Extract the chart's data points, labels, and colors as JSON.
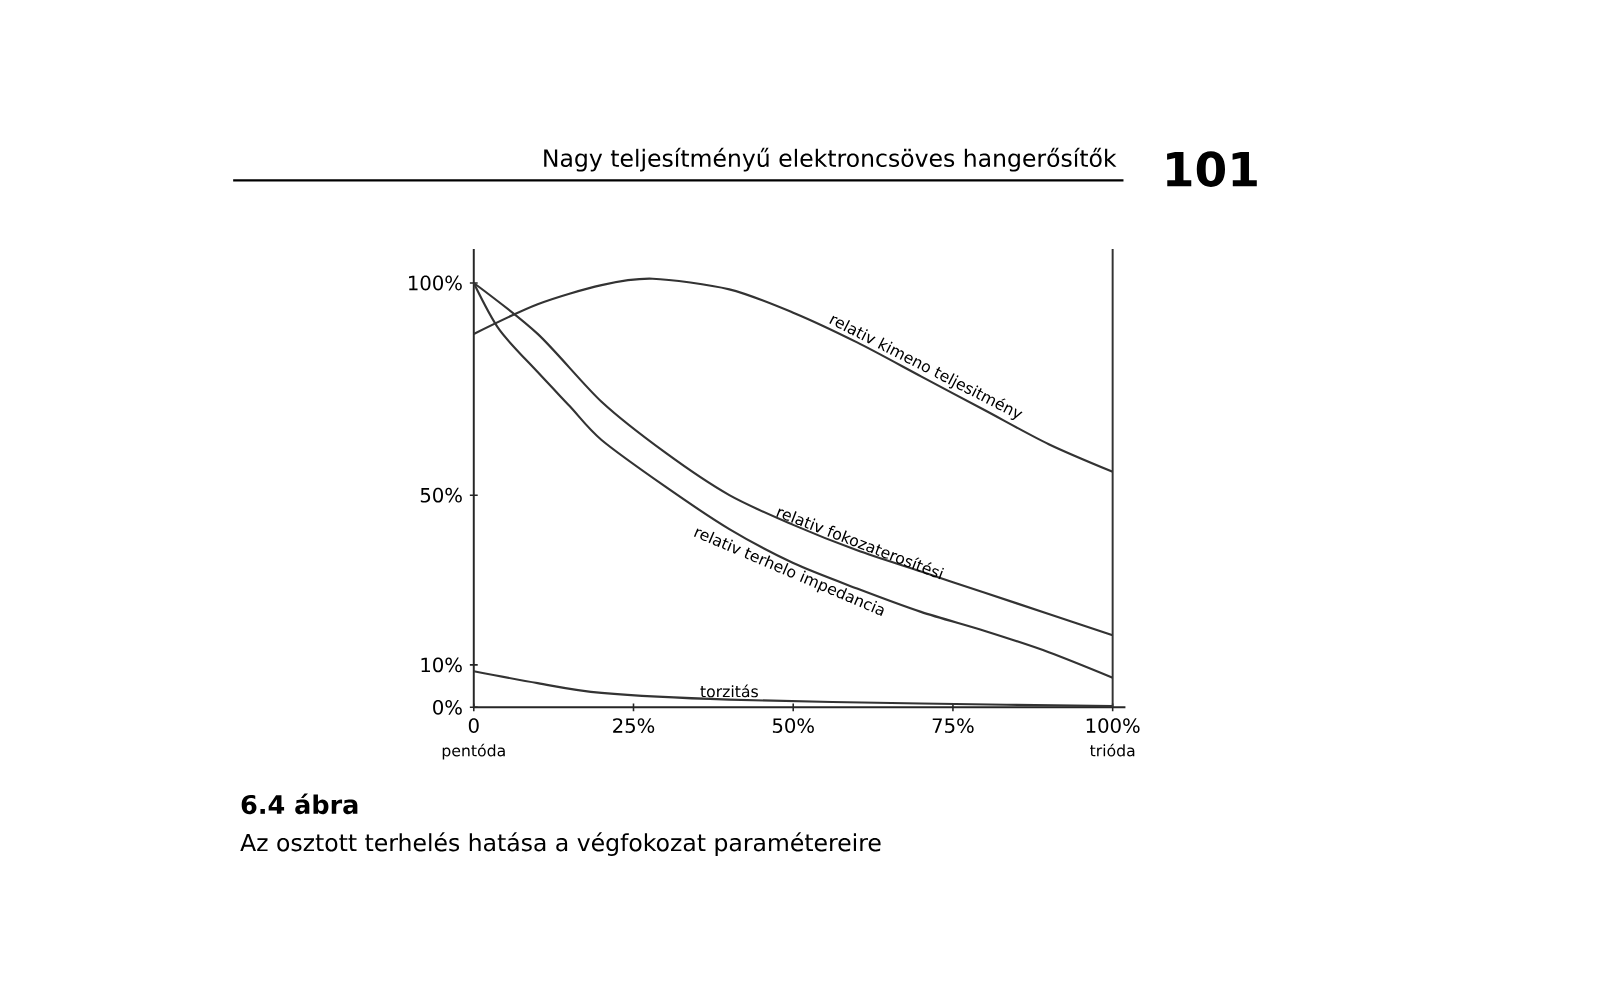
{
  "chart_data": {
    "type": "line",
    "title": "6.4 ábra",
    "subtitle": "Az osztott terhelés hatása a végfokozat paramétereire",
    "xlim": [
      0,
      102
    ],
    "ylim": [
      0,
      108
    ],
    "xticks": [
      {
        "value": 0,
        "label": "0"
      },
      {
        "value": 25,
        "label": "25%"
      },
      {
        "value": 50,
        "label": "50%"
      },
      {
        "value": 75,
        "label": "75%"
      },
      {
        "value": 100,
        "label": "100%"
      }
    ],
    "yticks": [
      {
        "value": 0,
        "label": "0%"
      },
      {
        "value": 10,
        "label": "10%"
      },
      {
        "value": 50,
        "label": "50%"
      },
      {
        "value": 100,
        "label": "100%"
      }
    ],
    "grid": false,
    "legend": false,
    "marker": "none",
    "line_style": "solid",
    "ref_lines": [
      {
        "axis": "x",
        "value": 100,
        "color": "#333333"
      }
    ],
    "annotations": [
      "Nagy teljesítményű elektroncsöves hangerősítők",
      "101",
      {
        "text": "pentóda",
        "x": 0,
        "y": 0
      },
      {
        "text": "trióda",
        "x": 100,
        "y": 0
      }
    ],
    "series": [
      {
        "name": "relativ kimeno teljesitmény",
        "color": "#333333",
        "x": [
          0,
          10,
          20,
          28,
          40,
          50,
          60,
          70,
          80,
          90,
          100
        ],
        "values": [
          88,
          95,
          99.5,
          101,
          98.5,
          93,
          86,
          78,
          70,
          62,
          55.5
        ]
      },
      {
        "name": "relativ fokozaterosítési",
        "color": "#333333",
        "x": [
          0,
          10,
          20,
          30,
          40,
          50,
          60,
          70,
          80,
          90,
          100
        ],
        "values": [
          100,
          88,
          72,
          60,
          50,
          43,
          37,
          32,
          27,
          22,
          17
        ]
      },
      {
        "name": "relativ terhelo impedancia",
        "color": "#333333",
        "x": [
          0,
          4,
          10,
          15,
          20,
          30,
          40,
          50,
          60,
          70,
          80,
          90,
          100
        ],
        "values": [
          100,
          89,
          79,
          71,
          63,
          52,
          42,
          34,
          28,
          22.5,
          18,
          13,
          7
        ]
      },
      {
        "name": "torzitás",
        "color": "#333333",
        "x": [
          0,
          10,
          20,
          40,
          70,
          100
        ],
        "values": [
          8.5,
          5.7,
          3.4,
          1.8,
          0.9,
          0.3
        ]
      }
    ]
  }
}
